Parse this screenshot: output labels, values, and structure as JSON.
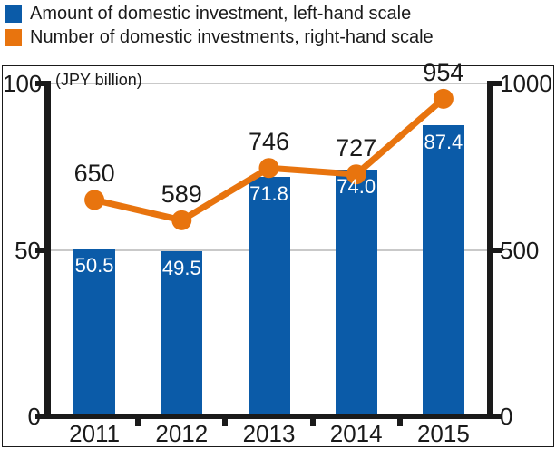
{
  "legend": {
    "items": [
      {
        "label": "Amount of domestic investment, left-hand scale",
        "color": "#0B5BA8"
      },
      {
        "label": "Number of domestic investments, right-hand scale",
        "color": "#E8740E"
      }
    ]
  },
  "chart_data": {
    "type": "bar",
    "subtype": "bar-line-combo",
    "categories": [
      "2011",
      "2012",
      "2013",
      "2014",
      "2015"
    ],
    "series": [
      {
        "name": "Amount of domestic investment",
        "mark": "bar",
        "axis": "left",
        "color": "#0B5BA8",
        "values": [
          50.5,
          49.5,
          71.8,
          74.0,
          87.4
        ],
        "labels": [
          "50.5",
          "49.5",
          "71.8",
          "74.0",
          "87.4"
        ],
        "label_color": "#ffffff"
      },
      {
        "name": "Number of domestic investments",
        "mark": "line",
        "axis": "right",
        "color": "#E8740E",
        "values": [
          650,
          589,
          746,
          727,
          954
        ],
        "labels": [
          "650",
          "589",
          "746",
          "727",
          "954"
        ],
        "label_color": "#1a1a1a"
      }
    ],
    "left_axis": {
      "title": "(JPY billion)",
      "range": [
        0,
        100
      ],
      "ticks": [
        0,
        50,
        100
      ],
      "tick_labels": [
        "0",
        "50",
        "100"
      ]
    },
    "right_axis": {
      "range": [
        0,
        1000
      ],
      "ticks": [
        0,
        500,
        1000
      ],
      "tick_labels": [
        "0",
        "500",
        "1000"
      ]
    },
    "grid": {
      "horizontal_at_left_values": [
        50,
        100
      ],
      "color": "#c9c9c9"
    },
    "axis_color": "#1a1a1a",
    "legend_position": "top-left"
  }
}
